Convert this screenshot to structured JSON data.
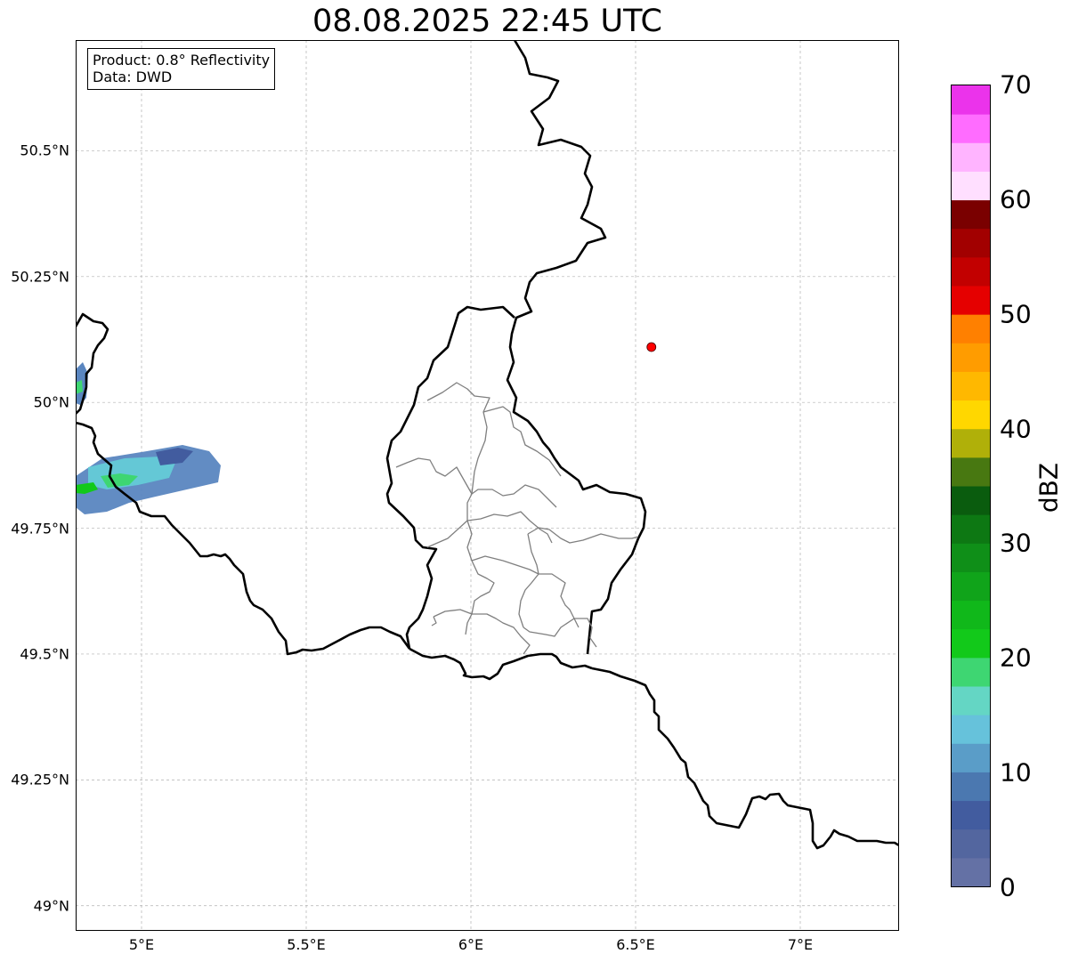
{
  "title": "08.08.2025 22:45 UTC",
  "info": {
    "product": "Product: 0.8° Reflectivity",
    "source": "Data: DWD"
  },
  "map": {
    "lon_range": [
      4.8,
      7.3
    ],
    "lat_range": [
      48.95,
      50.72
    ],
    "x_ticks": [
      {
        "lon": 5.0,
        "label": "5°E"
      },
      {
        "lon": 5.5,
        "label": "5.5°E"
      },
      {
        "lon": 6.0,
        "label": "6°E"
      },
      {
        "lon": 6.5,
        "label": "6.5°E"
      },
      {
        "lon": 7.0,
        "label": "7°E"
      }
    ],
    "y_ticks": [
      {
        "lat": 50.5,
        "label": "50.5°N"
      },
      {
        "lat": 50.25,
        "label": "50.25°N"
      },
      {
        "lat": 50.0,
        "label": "50°N"
      },
      {
        "lat": 49.75,
        "label": "49.75°N"
      },
      {
        "lat": 49.5,
        "label": "49.5°N"
      },
      {
        "lat": 49.25,
        "label": "49.25°N"
      },
      {
        "lat": 49.0,
        "label": "49°N"
      }
    ],
    "radar_site": {
      "lon": 6.548,
      "lat": 50.11,
      "color": "#ff0000"
    },
    "grid_on": true
  },
  "colorbar": {
    "unit": "dBZ",
    "min": 0,
    "max": 70,
    "step": 2.5,
    "labels": [
      {
        "value": 0,
        "text": "0"
      },
      {
        "value": 10,
        "text": "10"
      },
      {
        "value": 20,
        "text": "20"
      },
      {
        "value": 30,
        "text": "30"
      },
      {
        "value": 40,
        "text": "40"
      },
      {
        "value": 50,
        "text": "50"
      },
      {
        "value": 60,
        "text": "60"
      },
      {
        "value": 70,
        "text": "70"
      }
    ],
    "colors": [
      "#6471a5",
      "#53669f",
      "#425c9f",
      "#4b78b0",
      "#5a9dc8",
      "#66c2db",
      "#64d6c4",
      "#3ed672",
      "#12c91a",
      "#10b81a",
      "#10a41a",
      "#0f8f18",
      "#0d7813",
      "#0a5c0e",
      "#487811",
      "#b0b009",
      "#ffd700",
      "#ffb800",
      "#ff9c00",
      "#ff8000",
      "#e50000",
      "#c20000",
      "#a20000",
      "#7a0000",
      "#ffdfff",
      "#ffb4ff",
      "#ff6cff",
      "#eb33eb"
    ]
  }
}
